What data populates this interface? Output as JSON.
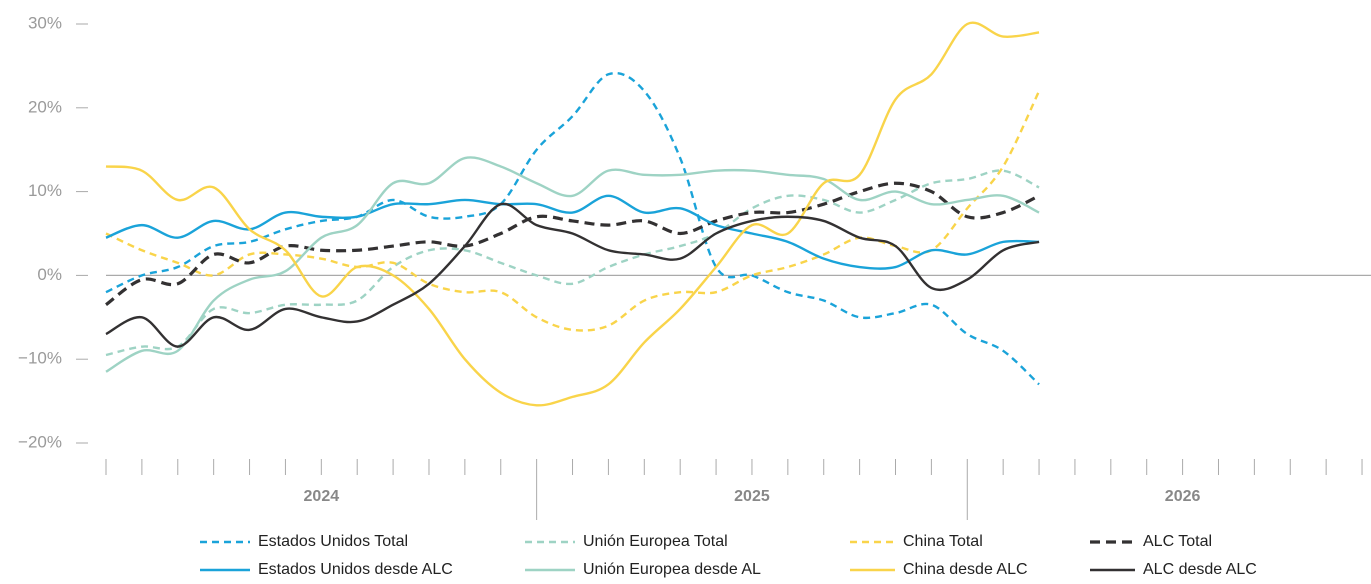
{
  "chart_data": {
    "type": "line",
    "x": [
      0,
      1,
      2,
      3,
      4,
      5,
      6,
      7,
      8,
      9,
      10,
      11,
      12,
      13,
      14,
      15,
      16,
      17,
      18,
      19,
      20,
      21,
      22,
      23,
      24,
      25,
      26
    ],
    "xlim": [
      0,
      35.25
    ],
    "xticks": [
      0,
      1,
      2,
      3,
      4,
      5,
      6,
      7,
      8,
      9,
      10,
      11,
      12,
      13,
      14,
      15,
      16,
      17,
      18,
      19,
      20,
      21,
      22,
      23,
      24,
      25,
      26,
      27,
      28,
      29,
      30,
      31,
      32,
      33,
      34,
      35
    ],
    "years": [
      "2024",
      "2025",
      "2026"
    ],
    "ylim": [
      -20,
      30
    ],
    "yticks": [
      {
        "value": -20,
        "label": "−20%"
      },
      {
        "value": -10,
        "label": "−10%"
      },
      {
        "value": 0,
        "label": "0%"
      },
      {
        "value": 10,
        "label": "10%"
      },
      {
        "value": 20,
        "label": "20%"
      },
      {
        "value": 30,
        "label": "30%"
      }
    ],
    "series": [
      {
        "name": "Estados Unidos Total",
        "color": "#1aa3d9",
        "dash": true,
        "values": [
          -2,
          0,
          1,
          3.5,
          4,
          5.5,
          6.5,
          7,
          9,
          7,
          7,
          8.5,
          15,
          19,
          24,
          22,
          14,
          1,
          0,
          -2,
          -3,
          -5,
          -4.5,
          -3.5,
          -7,
          -9,
          -13
        ]
      },
      {
        "name": "Unión Europea Total",
        "color": "#9ed3c4",
        "dash": true,
        "values": [
          -9.5,
          -8.5,
          -8.5,
          -4,
          -4.5,
          -3.5,
          -3.5,
          -3,
          1,
          3,
          3,
          1.5,
          0,
          -1,
          1,
          2.5,
          3.5,
          5,
          8,
          9.5,
          9,
          7.5,
          9,
          11,
          11.5,
          12.5,
          10.5
        ]
      },
      {
        "name": "China Total",
        "color": "#f9d44a",
        "dash": true,
        "values": [
          5,
          3,
          1.5,
          0,
          2.5,
          2.5,
          2,
          1,
          1.5,
          -1,
          -2,
          -2,
          -5,
          -6.5,
          -6,
          -3,
          -2,
          -2,
          0,
          1,
          2.5,
          4.5,
          3.5,
          3,
          8,
          13,
          22
        ]
      },
      {
        "name": "ALC Total",
        "color": "#333132",
        "dash": true,
        "values": [
          -3.5,
          -0.5,
          -1,
          2.5,
          1.5,
          3.5,
          3,
          3,
          3.5,
          4,
          3.5,
          5,
          7,
          6.5,
          6,
          6.5,
          5,
          6.5,
          7.5,
          7.5,
          8.5,
          10,
          11,
          10,
          7,
          7.5,
          9.5
        ]
      },
      {
        "name": "Estados Unidos desde ALC",
        "color": "#1aa3d9",
        "dash": false,
        "values": [
          4.5,
          6,
          4.5,
          6.5,
          5.5,
          7.5,
          7,
          7,
          8.5,
          8.5,
          9,
          8.5,
          8.5,
          7.5,
          9.5,
          7.5,
          8,
          6,
          5,
          4,
          2,
          1,
          1,
          3,
          2.5,
          4,
          4
        ]
      },
      {
        "name": "Unión Europea desde AL",
        "color": "#9ed3c4",
        "dash": false,
        "values": [
          -11.5,
          -9,
          -9,
          -3,
          -0.5,
          0.5,
          4.5,
          6,
          11,
          11,
          14,
          13,
          11,
          9.5,
          12.5,
          12,
          12,
          12.5,
          12.5,
          12,
          11.5,
          9,
          10,
          8.5,
          9,
          9.5,
          7.5
        ]
      },
      {
        "name": "China desde ALC",
        "color": "#f9d44a",
        "dash": false,
        "values": [
          13,
          12.5,
          9,
          10.5,
          5.5,
          3,
          -2.5,
          1,
          0,
          -4,
          -10,
          -14,
          -15.5,
          -14.5,
          -13,
          -8,
          -4,
          1,
          6,
          5,
          11,
          12,
          21,
          24,
          30,
          28.5,
          29
        ]
      },
      {
        "name": "ALC desde ALC",
        "color": "#333132",
        "dash": false,
        "values": [
          -7,
          -5,
          -8.5,
          -5,
          -6.5,
          -4,
          -5,
          -5.5,
          -3.5,
          -1,
          3.5,
          8.5,
          6,
          5,
          3,
          2.5,
          2,
          5,
          6.5,
          7,
          6.5,
          4.5,
          3.5,
          -1.5,
          -0.5,
          3,
          4
        ]
      }
    ]
  }
}
